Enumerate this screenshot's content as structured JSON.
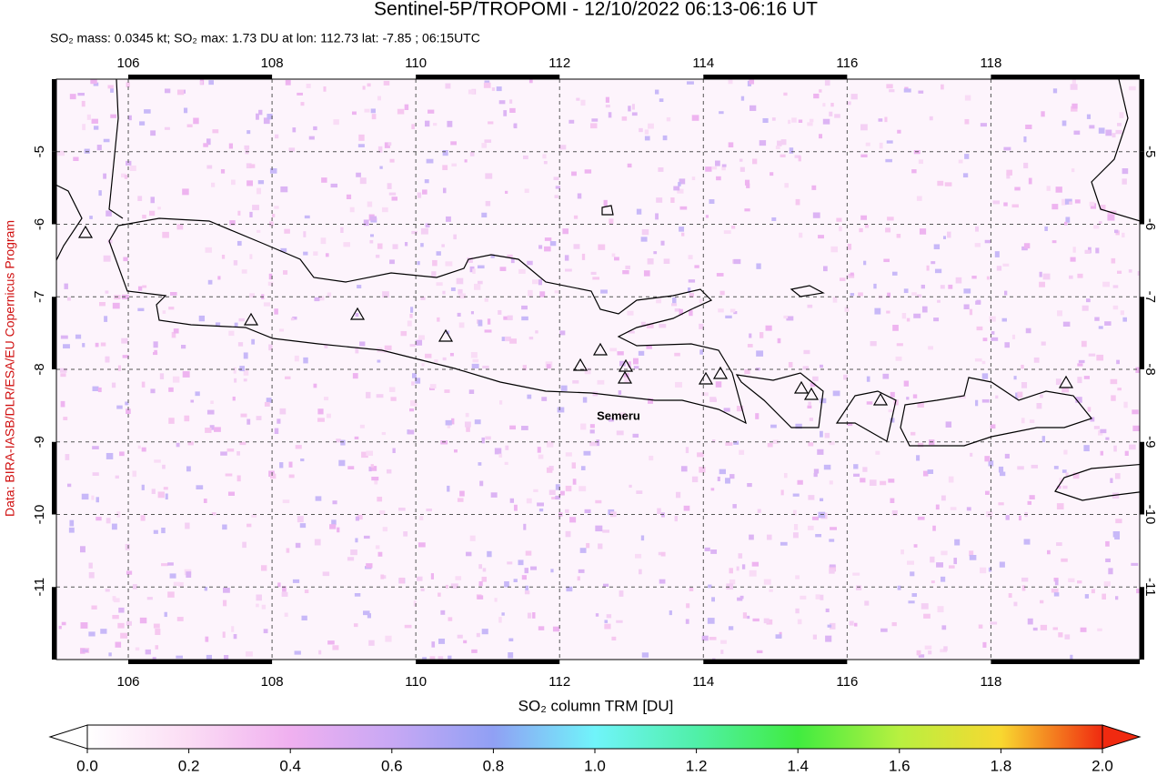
{
  "header": {
    "title": "Sentinel-5P/TROPOMI - 12/10/2022 06:13-06:16 UT",
    "subtitle": "SO₂ mass: 0.0345 kt; SO₂ max: 1.73 DU at lon: 112.73 lat: -7.85 ; 06:15UTC",
    "credit": "Data: BIRA-IASB/DLR/ESA/EU Copernicus Program"
  },
  "map": {
    "xlim": [
      105,
      120.07
    ],
    "ylim": [
      -12,
      -4
    ],
    "xticks": [
      106,
      108,
      110,
      112,
      114,
      116,
      118
    ],
    "yticks": [
      -5,
      -6,
      -7,
      -8,
      -9,
      -10,
      -11
    ],
    "annotation": "Semeru"
  },
  "colorbar": {
    "label": "SO₂ column TRM [DU]",
    "ticks": [
      {
        "value": 0,
        "label": "0.0"
      },
      {
        "value": 0.2,
        "label": "0.2"
      },
      {
        "value": 0.4,
        "label": "0.4"
      },
      {
        "value": 0.6,
        "label": "0.6"
      },
      {
        "value": 0.8,
        "label": "0.8"
      },
      {
        "value": 1,
        "label": "1.0"
      },
      {
        "value": 1.2,
        "label": "1.2"
      },
      {
        "value": 1.4,
        "label": "1.4"
      },
      {
        "value": 1.6,
        "label": "1.6"
      },
      {
        "value": 1.8,
        "label": "1.8"
      },
      {
        "value": 2,
        "label": "2.0"
      }
    ]
  }
}
